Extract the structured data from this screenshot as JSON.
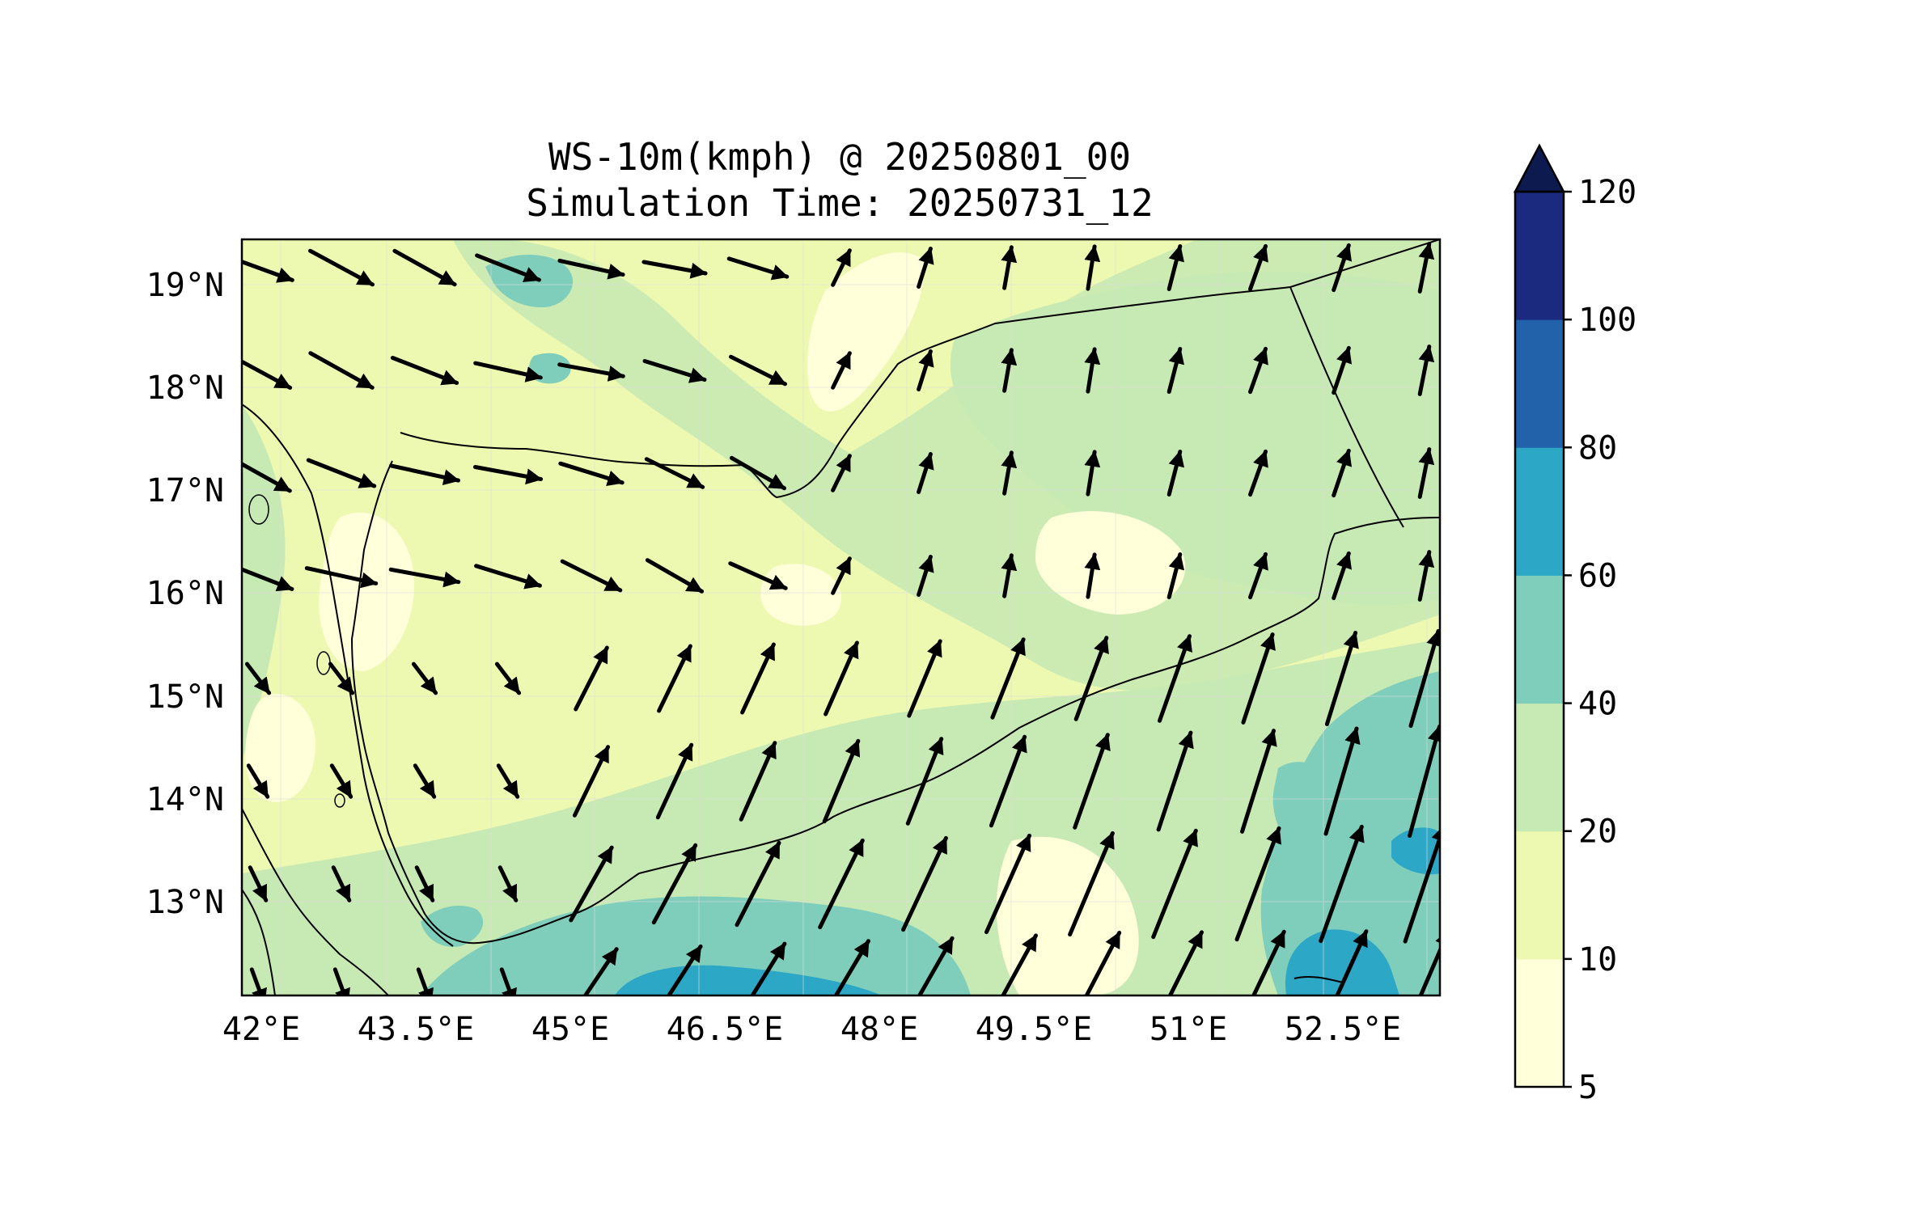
{
  "title_line1": "WS-10m(kmph) @ 20250801_00",
  "title_line2": "Simulation Time: 20250731_12",
  "x_ticks": [
    "42°E",
    "43.5°E",
    "45°E",
    "46.5°E",
    "48°E",
    "49.5°E",
    "51°E",
    "52.5°E"
  ],
  "y_ticks": [
    "19°N",
    "18°N",
    "17°N",
    "16°N",
    "15°N",
    "14°N",
    "13°N"
  ],
  "colorbar": {
    "levels": [
      "5",
      "10",
      "20",
      "40",
      "60",
      "80",
      "100",
      "120"
    ],
    "colors": [
      "#ffffd9",
      "#edf8b1",
      "#c7e9b4",
      "#7fcdbb",
      "#2ca7c5",
      "#2262aa",
      "#1b2a7e"
    ],
    "extend_color": "#0d1a4f"
  },
  "map": {
    "lon_range": [
      42,
      53.8
    ],
    "lat_range": [
      12.1,
      19.45
    ],
    "field_colors": {
      "land_base": "#edf8b1",
      "light": "#ffffd9",
      "mid": "#c7e9b4",
      "strong": "#7fcdbb",
      "stronger": "#41b6c4"
    },
    "quiver_color": "#000000"
  },
  "chart_data": {
    "type": "heatmap",
    "title": "WS-10m(kmph) @ 20250801_00",
    "subtitle": "Simulation Time: 20250731_12",
    "variable": "10 m wind speed (kmph) with wind vectors",
    "x_range_deg_E": [
      42,
      53.8
    ],
    "y_range_deg_N": [
      12.1,
      19.45
    ],
    "colorbar_levels": [
      5,
      10,
      20,
      40,
      60,
      80,
      100,
      120
    ],
    "colorbar_extend": "max",
    "dominant_range_kmph": [
      10,
      40
    ],
    "max_region": "southeast offshore (Gulf of Aden / Arabian Sea) 40-80 kmph",
    "wind_direction_summary": "northwesterly/westerly over north, southwesterly over south"
  }
}
